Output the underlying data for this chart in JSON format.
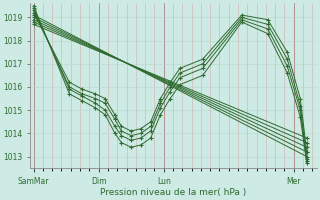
{
  "bg_color": "#cdeae4",
  "line_color": "#2d6a2d",
  "marker": "+",
  "xlabel_text": "Pression niveau de la mer( hPa )",
  "xtick_labels": [
    "SamMar",
    "Dim",
    "Lun",
    "Mer"
  ],
  "xtick_positions": [
    0.0,
    1.0,
    2.0,
    4.0
  ],
  "ylim": [
    1012.5,
    1019.6
  ],
  "xlim": [
    -0.05,
    4.35
  ],
  "yticks": [
    1013,
    1014,
    1015,
    1016,
    1017,
    1018,
    1019
  ],
  "series": [
    {
      "x": [
        0,
        4.2
      ],
      "y": [
        1019.1,
        1013.0
      ]
    },
    {
      "x": [
        0,
        4.2
      ],
      "y": [
        1019.0,
        1013.2
      ]
    },
    {
      "x": [
        0,
        4.2
      ],
      "y": [
        1018.9,
        1013.4
      ]
    },
    {
      "x": [
        0,
        4.2
      ],
      "y": [
        1018.8,
        1013.6
      ]
    },
    {
      "x": [
        0,
        4.2
      ],
      "y": [
        1018.7,
        1013.8
      ]
    },
    {
      "x": [
        0,
        0.55,
        0.75,
        0.95,
        1.1,
        1.25,
        1.35,
        1.5,
        1.65,
        1.8,
        1.95,
        2.1,
        2.25,
        2.6,
        3.2,
        3.6,
        3.9,
        4.1,
        4.2
      ],
      "y": [
        1019.2,
        1016.2,
        1015.9,
        1015.7,
        1015.5,
        1014.8,
        1014.3,
        1014.1,
        1014.2,
        1014.5,
        1015.5,
        1016.2,
        1016.8,
        1017.2,
        1019.1,
        1018.9,
        1017.5,
        1015.5,
        1013.2
      ]
    },
    {
      "x": [
        0,
        0.55,
        0.75,
        0.95,
        1.1,
        1.25,
        1.35,
        1.5,
        1.65,
        1.8,
        1.95,
        2.1,
        2.25,
        2.6,
        3.2,
        3.6,
        3.9,
        4.1,
        4.2
      ],
      "y": [
        1019.3,
        1016.0,
        1015.7,
        1015.5,
        1015.3,
        1014.6,
        1014.1,
        1013.9,
        1014.0,
        1014.3,
        1015.3,
        1016.0,
        1016.6,
        1017.0,
        1019.0,
        1018.7,
        1017.2,
        1015.2,
        1012.9
      ]
    },
    {
      "x": [
        0,
        0.55,
        0.75,
        0.95,
        1.1,
        1.25,
        1.35,
        1.5,
        1.65,
        1.8,
        1.95,
        2.1,
        2.25,
        2.6,
        3.2,
        3.6,
        3.9,
        4.1,
        4.2
      ],
      "y": [
        1019.4,
        1015.9,
        1015.6,
        1015.3,
        1015.0,
        1014.3,
        1013.9,
        1013.7,
        1013.8,
        1014.1,
        1015.1,
        1015.8,
        1016.4,
        1016.8,
        1018.9,
        1018.5,
        1016.9,
        1015.0,
        1012.8
      ]
    },
    {
      "x": [
        0,
        0.55,
        0.75,
        0.95,
        1.1,
        1.25,
        1.35,
        1.5,
        1.65,
        1.8,
        1.95,
        2.1,
        2.25,
        2.6,
        3.2,
        3.6,
        3.9,
        4.1,
        4.2
      ],
      "y": [
        1019.5,
        1015.7,
        1015.4,
        1015.1,
        1014.8,
        1014.0,
        1013.6,
        1013.4,
        1013.5,
        1013.8,
        1014.8,
        1015.5,
        1016.1,
        1016.5,
        1018.8,
        1018.3,
        1016.6,
        1014.7,
        1012.7
      ]
    }
  ]
}
